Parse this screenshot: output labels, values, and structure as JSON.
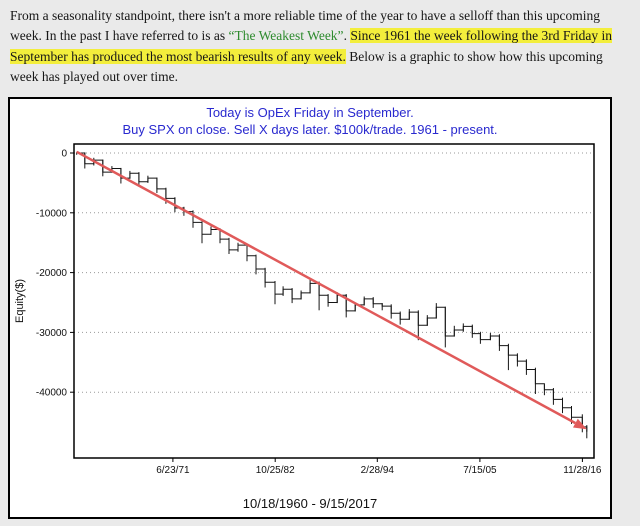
{
  "page": {
    "background": "#eaeaea"
  },
  "paragraph": {
    "segments": [
      {
        "text": "From a seasonality standpoint, there isn't a more reliable time of the year to have a selloff than this upcoming week. In the past I have referred to is as ",
        "style": "normal"
      },
      {
        "text": "“The Weakest Week”",
        "style": "link"
      },
      {
        "text": ". ",
        "style": "normal"
      },
      {
        "text": "Since 1961 the week following the 3rd Friday in September has produced the most bearish results of any week.",
        "style": "highlight"
      },
      {
        "text": " Below is a graphic to show how this upcoming week has played out over time.",
        "style": "normal"
      }
    ],
    "link_color": "#2e8b2e",
    "highlight_color": "#f3ee3c"
  },
  "chart": {
    "title_line1": "Today is OpEx Friday in September.",
    "title_line2": "Buy SPX on close. Sell X days later. $100k/trade. 1961 - present.",
    "date_range": "10/18/1960 - 9/15/2017",
    "title_color": "#2929cf",
    "trend_color": "#e05a5a",
    "series_color": "#151515"
  },
  "chart_data": {
    "type": "line",
    "title": "Today is OpEx Friday in September. Buy SPX on close. Sell X days later. $100k/trade. 1961 - present.",
    "xlabel": "10/18/1960 - 9/15/2017",
    "ylabel": "Equity($)",
    "grid": "horizontal-dotted",
    "x_range": [
      1960.5,
      2018.2
    ],
    "ylim": [
      -51000,
      1500
    ],
    "yticks": [
      0,
      -10000,
      -20000,
      -30000,
      -40000
    ],
    "xticks": [
      {
        "t": 1971.47,
        "label": "6/23/71"
      },
      {
        "t": 1982.82,
        "label": "10/25/82"
      },
      {
        "t": 1994.16,
        "label": "2/28/94"
      },
      {
        "t": 2005.54,
        "label": "7/15/05"
      },
      {
        "t": 2016.91,
        "label": "11/28/16"
      }
    ],
    "series_name": "Equity curve (cumulative $ P/L per trade, approx.)",
    "bars_format": "[t, close, low, high]",
    "bars": [
      [
        1960.8,
        0,
        -300,
        200
      ],
      [
        1961.7,
        -1800,
        -2600,
        100
      ],
      [
        1962.7,
        -1200,
        -2100,
        -800
      ],
      [
        1963.7,
        -3200,
        -3900,
        -1100
      ],
      [
        1964.7,
        -2600,
        -3300,
        -2200
      ],
      [
        1965.7,
        -4200,
        -5100,
        -2500
      ],
      [
        1966.7,
        -3400,
        -4300,
        -3000
      ],
      [
        1967.7,
        -4800,
        -5500,
        -3200
      ],
      [
        1968.7,
        -4200,
        -5000,
        -3800
      ],
      [
        1969.7,
        -6000,
        -6700,
        -4100
      ],
      [
        1970.7,
        -7600,
        -8500,
        -5800
      ],
      [
        1971.7,
        -9200,
        -9900,
        -7400
      ],
      [
        1972.7,
        -9800,
        -10500,
        -9000
      ],
      [
        1973.7,
        -11600,
        -12500,
        -9600
      ],
      [
        1974.7,
        -13600,
        -15100,
        -11400
      ],
      [
        1975.7,
        -12800,
        -13700,
        -12300
      ],
      [
        1976.7,
        -14400,
        -15100,
        -12600
      ],
      [
        1977.7,
        -16200,
        -16900,
        -14200
      ],
      [
        1978.7,
        -15400,
        -16500,
        -15000
      ],
      [
        1979.7,
        -17200,
        -18100,
        -15200
      ],
      [
        1980.7,
        -19400,
        -20300,
        -17000
      ],
      [
        1981.7,
        -21600,
        -22500,
        -19200
      ],
      [
        1982.8,
        -23600,
        -25300,
        -21400
      ],
      [
        1983.7,
        -22800,
        -23900,
        -22300
      ],
      [
        1984.7,
        -24400,
        -25100,
        -22600
      ],
      [
        1985.7,
        -23400,
        -24500,
        -23000
      ],
      [
        1986.7,
        -21800,
        -23500,
        -21200
      ],
      [
        1987.7,
        -23800,
        -26300,
        -21500
      ],
      [
        1988.7,
        -25000,
        -25700,
        -23600
      ],
      [
        1989.7,
        -23800,
        -25100,
        -23300
      ],
      [
        1990.7,
        -26400,
        -27500,
        -23600
      ],
      [
        1991.7,
        -25400,
        -26500,
        -25000
      ],
      [
        1992.7,
        -24400,
        -25500,
        -24000
      ],
      [
        1993.7,
        -25200,
        -25900,
        -24100
      ],
      [
        1994.7,
        -25600,
        -26300,
        -25100
      ],
      [
        1995.7,
        -26800,
        -27700,
        -25300
      ],
      [
        1996.7,
        -27800,
        -28700,
        -26500
      ],
      [
        1997.7,
        -26600,
        -27900,
        -26100
      ],
      [
        1998.7,
        -28800,
        -31300,
        -26300
      ],
      [
        1999.7,
        -27600,
        -28900,
        -27100
      ],
      [
        2000.7,
        -25800,
        -27700,
        -25100
      ],
      [
        2001.7,
        -30600,
        -32500,
        -25700
      ],
      [
        2002.7,
        -29600,
        -30700,
        -28900
      ],
      [
        2003.7,
        -29000,
        -29900,
        -28500
      ],
      [
        2004.7,
        -30200,
        -30900,
        -28700
      ],
      [
        2005.6,
        -31200,
        -31900,
        -29900
      ],
      [
        2006.7,
        -30600,
        -31300,
        -30100
      ],
      [
        2007.7,
        -32200,
        -33100,
        -30300
      ],
      [
        2008.7,
        -33800,
        -36300,
        -31900
      ],
      [
        2009.7,
        -34800,
        -35700,
        -33500
      ],
      [
        2010.7,
        -36200,
        -37100,
        -34500
      ],
      [
        2011.7,
        -38600,
        -40300,
        -35900
      ],
      [
        2012.7,
        -39600,
        -40500,
        -38700
      ],
      [
        2013.7,
        -41200,
        -42100,
        -39300
      ],
      [
        2014.7,
        -42600,
        -43500,
        -40900
      ],
      [
        2015.7,
        -44200,
        -45300,
        -42300
      ],
      [
        2016.9,
        -45800,
        -46700,
        -43700
      ],
      [
        2017.4,
        -46600,
        -47700,
        -45500
      ]
    ],
    "trend": {
      "start": {
        "t": 1960.8,
        "v": 200
      },
      "end": {
        "t": 2017.4,
        "v": -46200
      }
    },
    "legend": "none"
  }
}
